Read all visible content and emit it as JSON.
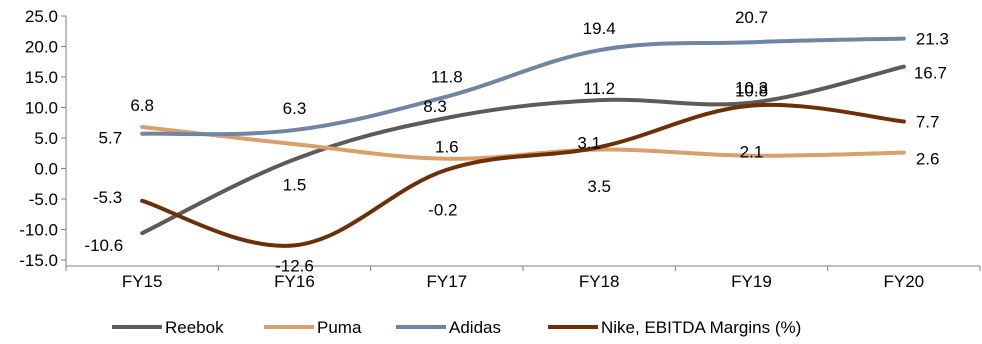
{
  "chart_data": {
    "type": "line",
    "title": "",
    "xlabel": "",
    "ylabel": "",
    "categories": [
      "FY15",
      "FY16",
      "FY17",
      "FY18",
      "FY19",
      "FY20"
    ],
    "ylim": [
      -15.0,
      25.0
    ],
    "yticks": [
      "25.0",
      "20.0",
      "15.0",
      "10.0",
      "5.0",
      "0.0",
      "-5.0",
      "-10.0",
      "-15.0"
    ],
    "grid": false,
    "legend_position": "bottom",
    "series": [
      {
        "name": "Reebok",
        "color": "#5f5a57",
        "values": [
          -10.6,
          1.5,
          8.3,
          11.2,
          10.8,
          16.7
        ],
        "labels": [
          "-10.6",
          "1.5",
          "8.3",
          "11.2",
          "10.8",
          "16.7"
        ]
      },
      {
        "name": "Puma",
        "color": "#d8a06a",
        "values": [
          6.8,
          4.0,
          1.6,
          3.1,
          2.1,
          2.6
        ],
        "labels": [
          "6.8",
          "",
          "1.6",
          "3.1",
          "2.1",
          "2.6"
        ]
      },
      {
        "name": "Adidas",
        "color": "#6f86a3",
        "values": [
          5.7,
          6.3,
          11.8,
          19.4,
          20.7,
          21.3
        ],
        "labels": [
          "5.7",
          "6.3",
          "11.8",
          "19.4",
          "20.7",
          "21.3"
        ]
      },
      {
        "name": "Nike, EBITDA Margins (%)",
        "color": "#6b3008",
        "values": [
          -5.3,
          -12.6,
          -0.2,
          3.5,
          10.3,
          7.7
        ],
        "labels": [
          "-5.3",
          "-12.6",
          "-0.2",
          "3.5",
          "10.3",
          "7.7"
        ]
      }
    ]
  }
}
